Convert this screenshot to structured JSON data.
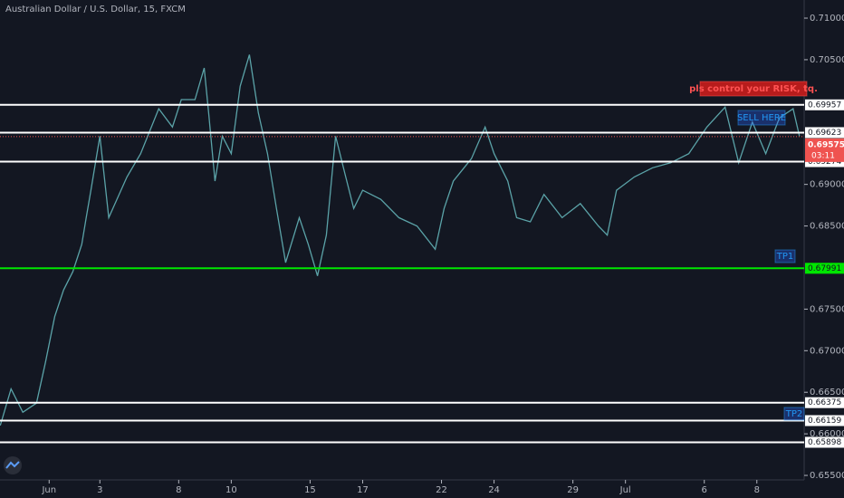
{
  "chart_data": {
    "type": "line",
    "title": "Australian Dollar / U.S. Dollar, 15, FXCM",
    "color": "#5ba3a8",
    "x": [
      -3.79,
      -3.38,
      -2.93,
      -2.41,
      -2.07,
      -1.72,
      -1.38,
      -1.03,
      -0.69,
      -0.52,
      -0.34,
      0,
      0.34,
      1.03,
      1.55,
      2.24,
      2.76,
      3.1,
      3.62,
      3.97,
      4.14,
      4.38,
      4.66,
      5,
      5.34,
      5.69,
      6.03,
      6.38,
      6.72,
      7.07,
      7.59,
      7.93,
      8.28,
      8.62,
      8.97,
      9.31,
      9.66,
      10,
      10.69,
      11.38,
      12.07,
      12.76,
      13.1,
      13.45,
      14.14,
      14.66,
      15,
      15.52,
      15.86,
      16.38,
      16.9,
      17.59,
      18.28,
      18.97,
      19.31,
      19.66,
      20.34,
      21.03,
      21.72,
      22.41,
      23.1,
      23.79,
      24.31,
      24.83,
      25.34,
      25.86,
      26.38,
      26.62
    ],
    "values": [
      0.661,
      0.6654,
      0.6626,
      0.6637,
      0.6686,
      0.6741,
      0.6773,
      0.6795,
      0.6828,
      0.686,
      0.6893,
      0.6958,
      0.686,
      0.6909,
      0.6937,
      0.6991,
      0.6969,
      0.7002,
      0.7002,
      0.704,
      0.6986,
      0.6904,
      0.6958,
      0.6937,
      0.7018,
      0.7056,
      0.6986,
      0.6937,
      0.6871,
      0.6806,
      0.686,
      0.6828,
      0.679,
      0.6839,
      0.6958,
      0.6915,
      0.6871,
      0.6893,
      0.6882,
      0.686,
      0.685,
      0.6822,
      0.6871,
      0.6904,
      0.6931,
      0.6969,
      0.6937,
      0.6904,
      0.686,
      0.6855,
      0.6888,
      0.686,
      0.6877,
      0.685,
      0.6839,
      0.6893,
      0.6909,
      0.692,
      0.6926,
      0.6937,
      0.6969,
      0.6993,
      0.6926,
      0.6975,
      0.6937,
      0.698,
      0.6991,
      0.6958
    ],
    "xlim": [
      -3.8,
      26.8
    ],
    "xticks": [
      {
        "value": -1.93,
        "label": "Jun"
      },
      {
        "value": 0,
        "label": "3"
      },
      {
        "value": 3,
        "label": "8"
      },
      {
        "value": 5,
        "label": "10"
      },
      {
        "value": 8,
        "label": "15"
      },
      {
        "value": 10,
        "label": "17"
      },
      {
        "value": 13,
        "label": "22"
      },
      {
        "value": 15,
        "label": "24"
      },
      {
        "value": 18,
        "label": "29"
      },
      {
        "value": 20,
        "label": "Jul"
      },
      {
        "value": 23,
        "label": "6"
      },
      {
        "value": 25,
        "label": "8"
      }
    ],
    "ylim": [
      0.65446,
      0.71218
    ],
    "yticks": [
      {
        "value": 0.655,
        "label": "0.65500"
      },
      {
        "value": 0.66,
        "label": "0.66000"
      },
      {
        "value": 0.665,
        "label": "0.66500"
      },
      {
        "value": 0.67,
        "label": "0.67000"
      },
      {
        "value": 0.675,
        "label": "0.67500"
      },
      {
        "value": 0.685,
        "label": "0.68500"
      },
      {
        "value": 0.69,
        "label": "0.69000"
      },
      {
        "value": 0.705,
        "label": "0.70500"
      },
      {
        "value": 0.71,
        "label": "0.71000"
      }
    ],
    "levels": [
      {
        "value": 0.69957,
        "color": "#ffffff"
      },
      {
        "value": 0.69623,
        "color": "#ffffff"
      },
      {
        "value": 0.69274,
        "color": "#ffffff"
      },
      {
        "value": 0.67991,
        "color": "#00e600"
      },
      {
        "value": 0.66375,
        "color": "#ffffff"
      },
      {
        "value": 0.66159,
        "color": "#ffffff"
      },
      {
        "value": 0.65898,
        "color": "#ffffff"
      }
    ],
    "last_price": 0.69575,
    "last_price_color": "#ef5350",
    "countdown": "03:11",
    "annotations": [
      "pls control your RISK, tq.",
      "SELL HERE",
      "TP1",
      "TP2"
    ]
  }
}
